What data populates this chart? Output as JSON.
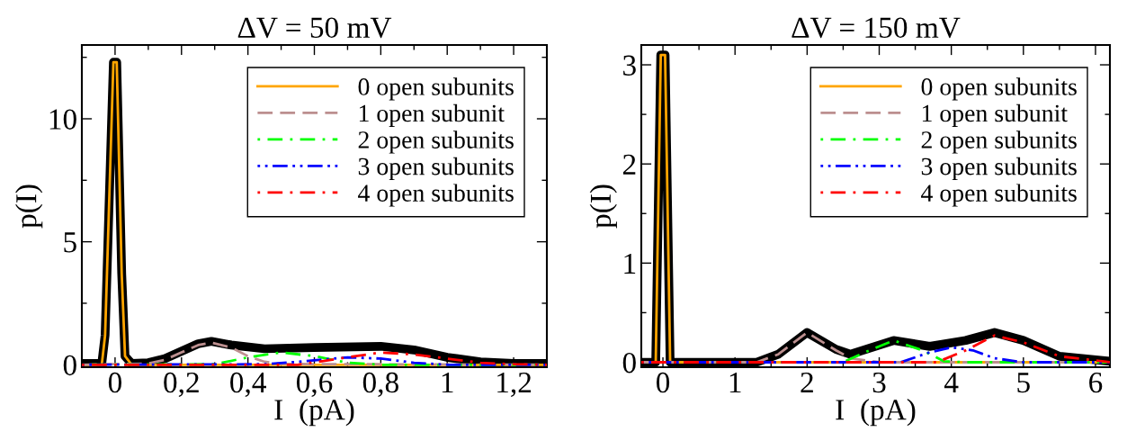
{
  "chart_data": [
    {
      "type": "line",
      "title": "ΔV = 50 mV",
      "xlabel": "I  (pA)",
      "ylabel": "p(I)",
      "xlim": [
        -0.1,
        1.3
      ],
      "ylim": [
        -0.1,
        13
      ],
      "xticks": [
        0,
        {
          "value": 0.2,
          "label": "0,2"
        },
        {
          "value": 0.4,
          "label": "0,4"
        },
        {
          "value": 0.6,
          "label": "0,6"
        },
        {
          "value": 0.8,
          "label": "0,8"
        },
        1,
        {
          "value": 1.2,
          "label": "1,2"
        }
      ],
      "yticks": [
        0,
        5,
        10
      ],
      "grid": false,
      "legend": "top right",
      "marker": "none",
      "series": [
        {
          "color": "#000000",
          "line_style": "solid",
          "x": [
            -0.1,
            -0.04,
            -0.03,
            -0.005,
            0.005,
            0.02,
            0.03,
            0.05,
            0.1,
            0.15,
            0.2,
            0.25,
            0.29,
            0.35,
            0.45,
            0.6,
            0.8,
            0.9,
            1.0,
            1.1,
            1.2,
            1.3
          ],
          "values": [
            0.05,
            0.05,
            1.2,
            12.3,
            12.3,
            3.7,
            0.35,
            0.05,
            0.08,
            0.25,
            0.55,
            0.85,
            0.95,
            0.8,
            0.65,
            0.7,
            0.75,
            0.6,
            0.3,
            0.12,
            0.05,
            0.05
          ]
        },
        {
          "name": "0 open subunits",
          "color": "#ffa500",
          "line_style": "solid",
          "x": [
            -0.1,
            -0.04,
            -0.03,
            -0.005,
            0.005,
            0.02,
            0.03,
            0.05,
            1.3
          ],
          "values": [
            0,
            0,
            1.2,
            12.3,
            12.3,
            3.7,
            0.35,
            0,
            0
          ]
        },
        {
          "name": "1 open subunit",
          "color": "#bc8f8f",
          "line_style": "dashed",
          "x": [
            -0.1,
            0.1,
            0.15,
            0.2,
            0.25,
            0.29,
            0.35,
            0.4,
            0.45,
            0.5,
            1.3
          ],
          "values": [
            0,
            0.05,
            0.2,
            0.5,
            0.8,
            0.9,
            0.7,
            0.35,
            0.12,
            0.03,
            0
          ]
        },
        {
          "name": "2 open subunits",
          "color": "#00ff00",
          "line_style": "dashdot",
          "x": [
            -0.1,
            0.3,
            0.4,
            0.5,
            0.6,
            0.7,
            0.8,
            1.3
          ],
          "values": [
            0,
            0.02,
            0.3,
            0.5,
            0.35,
            0.08,
            0,
            0
          ]
        },
        {
          "name": "3 open subunits",
          "color": "#0000ff",
          "line_style": "dashdotdot",
          "x": [
            -0.1,
            0.45,
            0.55,
            0.7,
            0.8,
            0.9,
            1.0,
            1.3
          ],
          "values": [
            0,
            0.02,
            0.12,
            0.3,
            0.25,
            0.08,
            0,
            0
          ]
        },
        {
          "name": "4 open subunits",
          "color": "#ff0000",
          "line_style": "dashdot",
          "x": [
            -0.1,
            0.55,
            0.65,
            0.8,
            0.9,
            1.0,
            1.1,
            1.2,
            1.3
          ],
          "values": [
            0,
            0,
            0.2,
            0.5,
            0.42,
            0.25,
            0.08,
            0.02,
            0
          ]
        }
      ]
    },
    {
      "type": "line",
      "title": "ΔV = 150 mV",
      "xlabel": "I  (pA)",
      "ylabel": "p(I)",
      "xlim": [
        -0.3,
        6.2
      ],
      "ylim": [
        -0.05,
        3.2
      ],
      "xticks": [
        0,
        1,
        2,
        3,
        4,
        5,
        6
      ],
      "yticks": [
        0,
        1,
        2,
        3
      ],
      "grid": false,
      "legend": "top right",
      "marker": "none",
      "series": [
        {
          "color": "#000000",
          "line_style": "solid",
          "x": [
            -0.3,
            -0.1,
            -0.03,
            0.03,
            0.1,
            1.3,
            1.6,
            2.0,
            2.4,
            2.6,
            3.2,
            3.7,
            4.2,
            4.6,
            5.0,
            5.5,
            6.2
          ],
          "values": [
            0,
            0,
            3.1,
            3.1,
            0,
            0,
            0.08,
            0.3,
            0.13,
            0.08,
            0.22,
            0.16,
            0.22,
            0.3,
            0.22,
            0.06,
            0.01
          ]
        },
        {
          "name": "0 open subunits",
          "color": "#ffa500",
          "line_style": "solid",
          "x": [
            -0.3,
            -0.1,
            -0.03,
            0.03,
            0.1,
            6.2
          ],
          "values": [
            0,
            0,
            3.1,
            3.1,
            0,
            0
          ]
        },
        {
          "name": "1 open subunit",
          "color": "#bc8f8f",
          "line_style": "dashed",
          "x": [
            -0.3,
            1.3,
            1.6,
            2.0,
            2.4,
            2.6,
            3.0,
            6.2
          ],
          "values": [
            0,
            0,
            0.08,
            0.3,
            0.12,
            0.04,
            0,
            0
          ]
        },
        {
          "name": "2 open subunits",
          "color": "#00ff00",
          "line_style": "dashdot",
          "x": [
            -0.3,
            2.5,
            2.8,
            3.2,
            3.6,
            3.9,
            4.2,
            6.2
          ],
          "values": [
            0,
            0,
            0.1,
            0.22,
            0.12,
            0.01,
            0,
            0
          ]
        },
        {
          "name": "3 open subunits",
          "color": "#0000ff",
          "line_style": "dashdotdot",
          "x": [
            -0.3,
            3.3,
            3.7,
            4.0,
            4.3,
            4.6,
            5.0,
            6.2
          ],
          "values": [
            0,
            0,
            0.1,
            0.15,
            0.12,
            0.04,
            0,
            0
          ]
        },
        {
          "name": "4 open subunits",
          "color": "#ff0000",
          "line_style": "dashdot",
          "x": [
            -0.3,
            3.8,
            4.2,
            4.6,
            5.0,
            5.5,
            6.2
          ],
          "values": [
            0,
            0,
            0.12,
            0.27,
            0.2,
            0.06,
            0
          ]
        }
      ]
    }
  ]
}
